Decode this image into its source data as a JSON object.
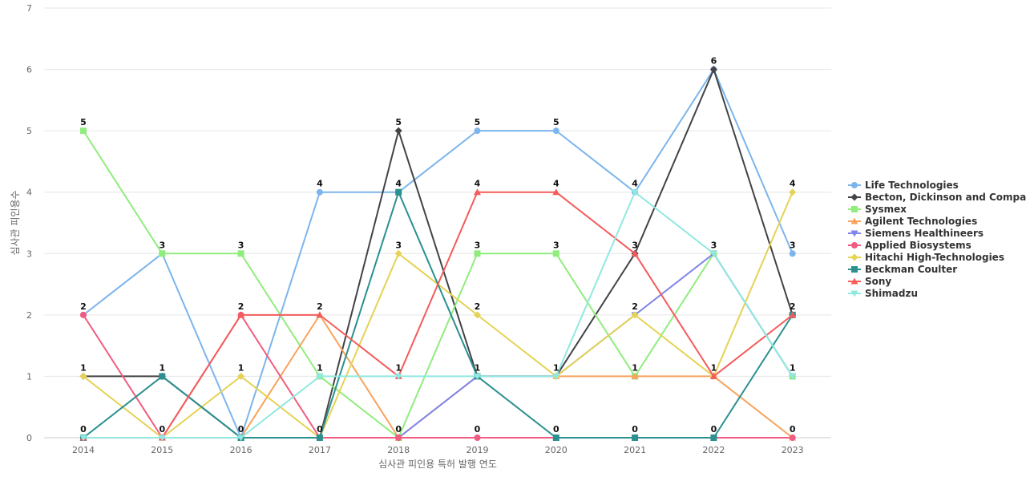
{
  "chart_data": {
    "type": "line",
    "title": "",
    "xlabel": "심사관 피인용 특허 발행 연도",
    "ylabel": "심사관 피인용수",
    "x": [
      "2014",
      "2015",
      "2016",
      "2017",
      "2018",
      "2019",
      "2020",
      "2021",
      "2022",
      "2023"
    ],
    "ylim": [
      0,
      7
    ],
    "yticks": [
      0,
      1,
      2,
      3,
      4,
      5,
      6,
      7
    ],
    "grid": true,
    "legend_position": "right",
    "series": [
      {
        "name": "Life Technologies",
        "color": "#7cb5ec",
        "marker": "circle",
        "values": [
          2,
          3,
          0,
          4,
          4,
          5,
          5,
          4,
          6,
          3
        ]
      },
      {
        "name": "Becton, Dickinson and Compa...",
        "color": "#434348",
        "marker": "diamond",
        "values": [
          1,
          1,
          0,
          0,
          5,
          1,
          1,
          3,
          6,
          2
        ]
      },
      {
        "name": "Sysmex",
        "color": "#90ed7d",
        "marker": "square",
        "values": [
          5,
          3,
          3,
          1,
          0,
          3,
          3,
          1,
          3,
          1
        ]
      },
      {
        "name": "Agilent Technologies",
        "color": "#f7a35c",
        "marker": "triangle",
        "values": [
          0,
          0,
          0,
          2,
          0,
          1,
          1,
          1,
          1,
          0
        ]
      },
      {
        "name": "Siemens Healthineers",
        "color": "#8085e9",
        "marker": "triangle-down",
        "values": [
          0,
          0,
          0,
          0,
          0,
          1,
          1,
          2,
          3,
          1
        ]
      },
      {
        "name": "Applied Biosystems",
        "color": "#f15c80",
        "marker": "circle",
        "values": [
          2,
          0,
          2,
          0,
          0,
          0,
          0,
          0,
          0,
          0
        ]
      },
      {
        "name": "Hitachi High-Technologies",
        "color": "#e4d354",
        "marker": "diamond",
        "values": [
          1,
          0,
          1,
          0,
          3,
          2,
          1,
          2,
          1,
          4
        ]
      },
      {
        "name": "Beckman Coulter",
        "color": "#2b908f",
        "marker": "square",
        "values": [
          0,
          1,
          0,
          0,
          4,
          1,
          0,
          0,
          0,
          2
        ]
      },
      {
        "name": "Sony",
        "color": "#f45b5b",
        "marker": "triangle",
        "values": [
          0,
          0,
          2,
          2,
          1,
          4,
          4,
          3,
          1,
          2
        ]
      },
      {
        "name": "Shimadzu",
        "color": "#91e8e1",
        "marker": "triangle-down",
        "values": [
          0,
          0,
          0,
          1,
          1,
          1,
          1,
          4,
          3,
          1
        ]
      }
    ],
    "data_labels": [
      {
        "x": "2014",
        "y": 5
      },
      {
        "x": "2014",
        "y": 2
      },
      {
        "x": "2014",
        "y": 1
      },
      {
        "x": "2014",
        "y": 0
      },
      {
        "x": "2015",
        "y": 3
      },
      {
        "x": "2015",
        "y": 1
      },
      {
        "x": "2015",
        "y": 0
      },
      {
        "x": "2016",
        "y": 3
      },
      {
        "x": "2016",
        "y": 2
      },
      {
        "x": "2016",
        "y": 1
      },
      {
        "x": "2016",
        "y": 0
      },
      {
        "x": "2017",
        "y": 4
      },
      {
        "x": "2017",
        "y": 2
      },
      {
        "x": "2017",
        "y": 1
      },
      {
        "x": "2017",
        "y": 0
      },
      {
        "x": "2018",
        "y": 5
      },
      {
        "x": "2018",
        "y": 4
      },
      {
        "x": "2018",
        "y": 3
      },
      {
        "x": "2018",
        "y": 1
      },
      {
        "x": "2018",
        "y": 0
      },
      {
        "x": "2019",
        "y": 5
      },
      {
        "x": "2019",
        "y": 4
      },
      {
        "x": "2019",
        "y": 3
      },
      {
        "x": "2019",
        "y": 2
      },
      {
        "x": "2019",
        "y": 1
      },
      {
        "x": "2019",
        "y": 0
      },
      {
        "x": "2020",
        "y": 5
      },
      {
        "x": "2020",
        "y": 4
      },
      {
        "x": "2020",
        "y": 3
      },
      {
        "x": "2020",
        "y": 1
      },
      {
        "x": "2020",
        "y": 0
      },
      {
        "x": "2021",
        "y": 4
      },
      {
        "x": "2021",
        "y": 3
      },
      {
        "x": "2021",
        "y": 2
      },
      {
        "x": "2021",
        "y": 1
      },
      {
        "x": "2021",
        "y": 0
      },
      {
        "x": "2022",
        "y": 6
      },
      {
        "x": "2022",
        "y": 3
      },
      {
        "x": "2022",
        "y": 1
      },
      {
        "x": "2022",
        "y": 0
      },
      {
        "x": "2023",
        "y": 4
      },
      {
        "x": "2023",
        "y": 3
      },
      {
        "x": "2023",
        "y": 2
      },
      {
        "x": "2023",
        "y": 1
      },
      {
        "x": "2023",
        "y": 0
      }
    ]
  }
}
